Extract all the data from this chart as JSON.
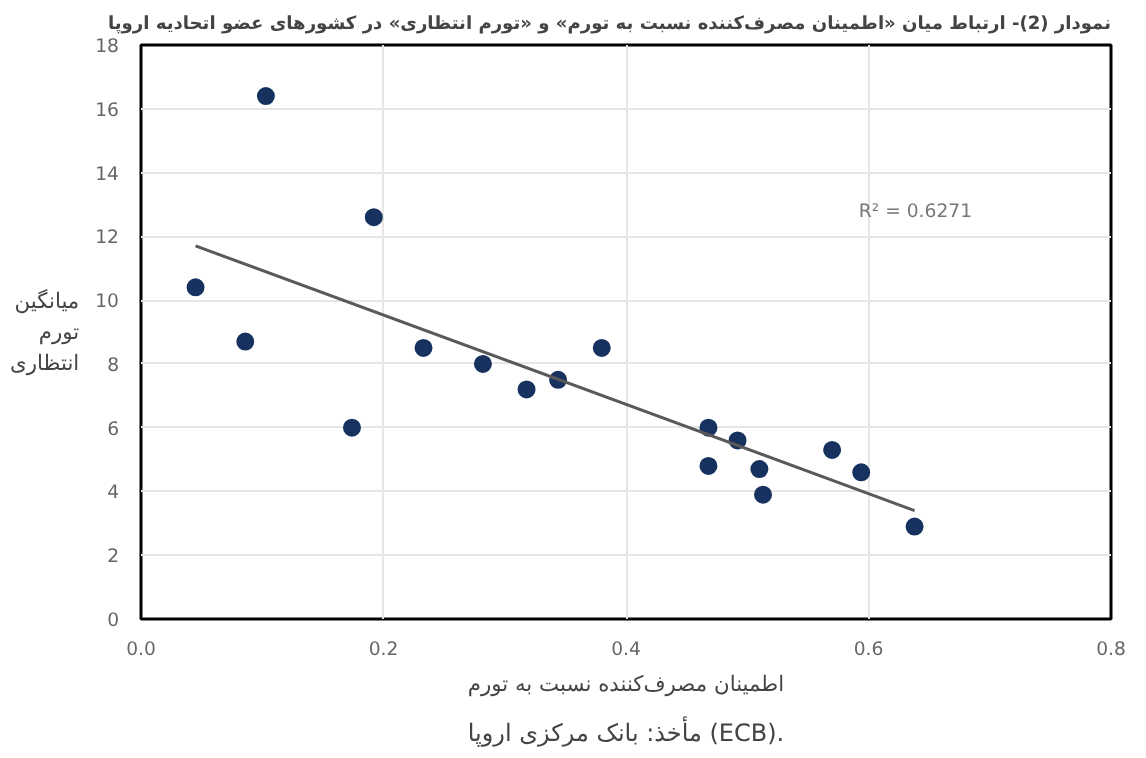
{
  "chart_data": {
    "type": "scatter",
    "title": "نمودار (2)- ارتباط میان «اطمینان مصرف‌کننده نسبت به تورم» و «تورم انتظاری» در کشورهای عضو اتحادیه اروپا",
    "xlabel": "اطمینان مصرف‌کننده نسبت به تورم",
    "ylabel": "میانگین\nتورم\nانتظاری",
    "annotations": [
      "R² = 0.6271",
      "مأخذ: بانک مرکزی اروپا (ECB)."
    ],
    "x": [
      0.045,
      0.086,
      0.103,
      0.174,
      0.192,
      0.233,
      0.282,
      0.318,
      0.344,
      0.38,
      0.468,
      0.468,
      0.492,
      0.51,
      0.513,
      0.57,
      0.594,
      0.638
    ],
    "series": [
      {
        "color": "#17325f",
        "values": [
          10.4,
          8.7,
          16.4,
          6.0,
          12.6,
          8.5,
          8.0,
          7.2,
          7.5,
          8.5,
          6.0,
          4.8,
          5.6,
          4.7,
          3.9,
          5.3,
          4.6,
          2.9
        ]
      },
      {
        "type": "line",
        "color": "#595959",
        "x": [
          0.045,
          0.638
        ],
        "values": [
          11.7,
          3.4
        ]
      }
    ],
    "xlim": [
      0,
      0.8
    ],
    "ylim": [
      0,
      18
    ],
    "xticks": [
      {
        "value": 0,
        "label": "0.0"
      },
      0.2,
      0.4,
      0.6,
      0.8
    ],
    "yticks": [
      0,
      2,
      4,
      6,
      8,
      10,
      12,
      14,
      16,
      18
    ],
    "grid": true
  }
}
